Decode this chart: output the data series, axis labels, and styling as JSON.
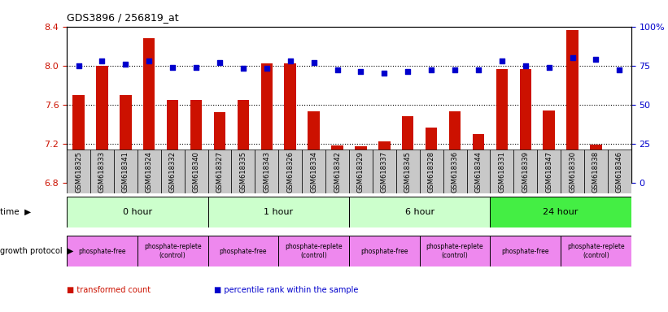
{
  "title": "GDS3896 / 256819_at",
  "samples": [
    "GSM618325",
    "GSM618333",
    "GSM618341",
    "GSM618324",
    "GSM618332",
    "GSM618340",
    "GSM618327",
    "GSM618335",
    "GSM618343",
    "GSM618326",
    "GSM618334",
    "GSM618342",
    "GSM618329",
    "GSM618337",
    "GSM618345",
    "GSM618328",
    "GSM618336",
    "GSM618344",
    "GSM618331",
    "GSM618339",
    "GSM618347",
    "GSM618330",
    "GSM618338",
    "GSM618346"
  ],
  "bar_values": [
    7.7,
    8.0,
    7.7,
    8.28,
    7.65,
    7.65,
    7.52,
    7.65,
    8.02,
    8.02,
    7.53,
    7.18,
    7.17,
    7.22,
    7.48,
    7.36,
    7.53,
    7.3,
    7.96,
    7.96,
    7.54,
    8.36,
    7.19,
    7.12
  ],
  "percentile_values": [
    75,
    78,
    76,
    78,
    74,
    74,
    77,
    73,
    73,
    78,
    77,
    72,
    71,
    70,
    71,
    72,
    72,
    72,
    78,
    75,
    74,
    80,
    79,
    72
  ],
  "bar_color": "#cc1100",
  "dot_color": "#0000cc",
  "ylim_left": [
    6.8,
    8.4
  ],
  "ylim_right": [
    0,
    100
  ],
  "yticks_left": [
    6.8,
    7.2,
    7.6,
    8.0,
    8.4
  ],
  "yticks_right": [
    0,
    25,
    50,
    75,
    100
  ],
  "ytick_labels_right": [
    "0",
    "25",
    "50",
    "75",
    "100%"
  ],
  "time_groups": [
    {
      "label": "0 hour",
      "start": 0,
      "end": 6,
      "color": "#ccffcc"
    },
    {
      "label": "1 hour",
      "start": 6,
      "end": 12,
      "color": "#ccffcc"
    },
    {
      "label": "6 hour",
      "start": 12,
      "end": 18,
      "color": "#ccffcc"
    },
    {
      "label": "24 hour",
      "start": 18,
      "end": 24,
      "color": "#44ee44"
    }
  ],
  "growth_groups": [
    {
      "label": "phosphate-free",
      "start": 0,
      "end": 3,
      "color": "#ee88ee"
    },
    {
      "label": "phosphate-replete\n(control)",
      "start": 3,
      "end": 6,
      "color": "#ee88ee"
    },
    {
      "label": "phosphate-free",
      "start": 6,
      "end": 9,
      "color": "#ee88ee"
    },
    {
      "label": "phosphate-replete\n(control)",
      "start": 9,
      "end": 12,
      "color": "#ee88ee"
    },
    {
      "label": "phosphate-free",
      "start": 12,
      "end": 15,
      "color": "#ee88ee"
    },
    {
      "label": "phosphate-replete\n(control)",
      "start": 15,
      "end": 18,
      "color": "#ee88ee"
    },
    {
      "label": "phosphate-free",
      "start": 18,
      "end": 21,
      "color": "#ee88ee"
    },
    {
      "label": "phosphate-replete\n(control)",
      "start": 21,
      "end": 24,
      "color": "#ee88ee"
    }
  ],
  "legend_items": [
    {
      "label": "transformed count",
      "color": "#cc1100"
    },
    {
      "label": "percentile rank within the sample",
      "color": "#0000cc"
    }
  ],
  "bg_color": "#ffffff",
  "tick_label_color_left": "#cc1100",
  "tick_label_color_right": "#0000cc",
  "bar_bottom": 6.8
}
